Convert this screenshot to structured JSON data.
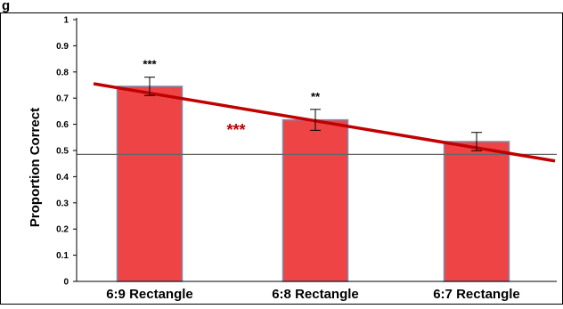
{
  "header": {
    "text": "g"
  },
  "chart_data": {
    "type": "bar",
    "title": "",
    "xlabel": "",
    "ylabel": "Proportion Correct",
    "ylim": [
      0,
      1
    ],
    "yticks": [
      "0",
      "0.1",
      "0.2",
      "0.3",
      "0.4",
      "0.5",
      "0.6",
      "0.7",
      "0.8",
      "0.9",
      "1"
    ],
    "categories": [
      "6:9 Rectangle",
      "6:8 Rectangle",
      "6:7 Rectangle"
    ],
    "values": [
      0.745,
      0.617,
      0.534
    ],
    "error": [
      0.035,
      0.04,
      0.035
    ],
    "significance": [
      "***",
      "**",
      ""
    ],
    "chance_level": 0.485,
    "trend_line": {
      "start": 0.755,
      "end": 0.46,
      "significance": "***"
    },
    "grid": false,
    "legend": "none"
  },
  "colors": {
    "bar_fill": "#ee4446",
    "bar_edge": "#7a8fb0",
    "trend": "#c00000",
    "reference": "#666666",
    "axis": "#000000"
  }
}
